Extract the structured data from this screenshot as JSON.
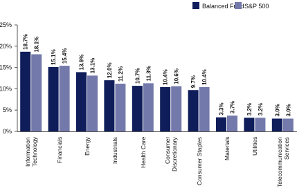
{
  "chart_data": {
    "type": "bar",
    "categories": [
      "Information Technology",
      "Financials",
      "Energy",
      "Industrials",
      "Health Care",
      "Consumer Discretionary",
      "Consumer Staples",
      "Materials",
      "Utilities",
      "Telecommunication Services"
    ],
    "series": [
      {
        "name": "Balanced Fund",
        "color": "#0f1d5a",
        "values": [
          18.7,
          15.1,
          13.9,
          12.0,
          10.7,
          10.4,
          9.7,
          3.3,
          3.2,
          3.0
        ],
        "value_labels": [
          "18.7%",
          "15.1%",
          "13.9%",
          "12.0%",
          "10.7%",
          "10.4%",
          "9.7%",
          "3.3%",
          "3.2%",
          "3.0%"
        ]
      },
      {
        "name": "S&P 500",
        "color": "#7379aa",
        "values": [
          18.1,
          15.4,
          13.1,
          11.2,
          11.3,
          10.6,
          10.4,
          3.7,
          3.2,
          3.0
        ],
        "value_labels": [
          "18.1%",
          "15.4%",
          "13.1%",
          "11.2%",
          "11.3%",
          "10.6%",
          "10.4%",
          "3.7%",
          "3.2%",
          "3.0%"
        ]
      }
    ],
    "ylim": [
      0,
      25
    ],
    "yticks": [
      {
        "value": 0,
        "label": "0%"
      },
      {
        "value": 5,
        "label": "5%"
      },
      {
        "value": 10,
        "label": "10%"
      },
      {
        "value": 15,
        "label": "15%"
      },
      {
        "value": 20,
        "label": "20%"
      },
      {
        "value": 25,
        "label": "25%"
      }
    ],
    "legend": "top-right"
  }
}
